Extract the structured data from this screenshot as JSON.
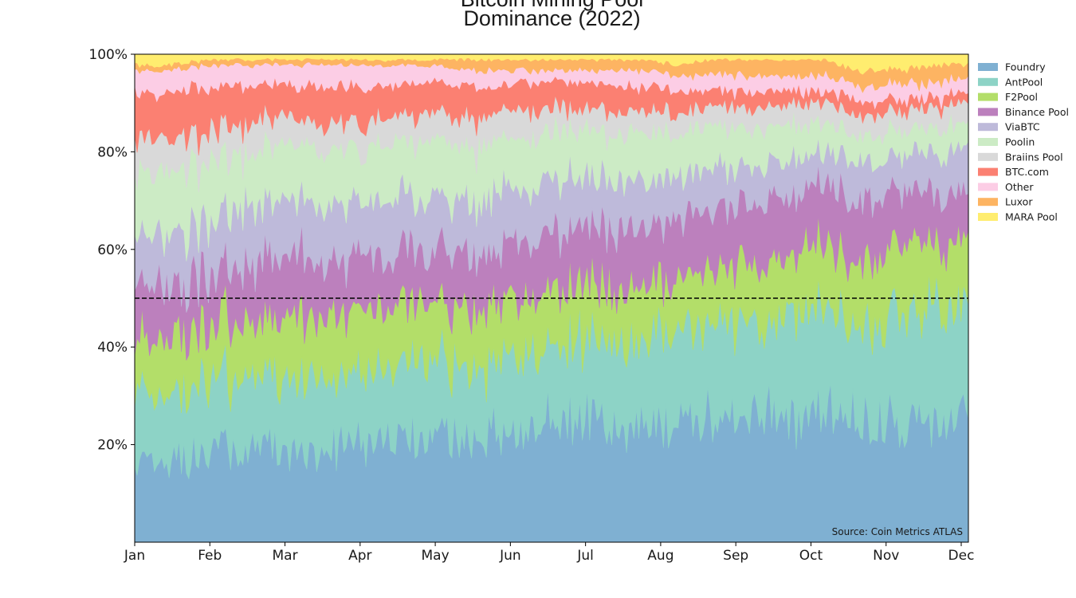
{
  "chart_data": {
    "type": "area",
    "stacked": true,
    "normalized": true,
    "title_line1": "Bitcoin Mining Pool",
    "title_line2": "Dominance (2022)",
    "source_note": "Source: Coin Metrics ATLAS",
    "xlabel": "",
    "ylabel": "",
    "x_ticks": [
      "Jan",
      "Feb",
      "Mar",
      "Apr",
      "May",
      "Jun",
      "Jul",
      "Aug",
      "Sep",
      "Oct",
      "Nov",
      "Dec"
    ],
    "y_ticks": [
      "20%",
      "40%",
      "60%",
      "80%",
      "100%"
    ],
    "ylim": [
      0,
      100
    ],
    "reference_line": {
      "y": 50,
      "style": "dashed",
      "color": "#000000"
    },
    "legend_position": "right",
    "grid": false,
    "series": [
      {
        "name": "Foundry",
        "color": "#7fb0d2",
        "values": [
          14,
          15,
          16,
          17,
          18,
          17,
          18,
          19,
          20,
          20,
          21,
          22,
          23,
          23,
          22,
          23,
          23,
          24,
          24,
          25,
          25,
          24,
          24,
          25
        ]
      },
      {
        "name": "AntPool",
        "color": "#8dd3c6",
        "values": [
          13,
          12,
          14,
          13,
          13,
          13,
          14,
          13,
          14,
          13,
          14,
          14,
          15,
          15,
          16,
          17,
          18,
          18,
          19,
          20,
          20,
          21,
          22,
          22
        ]
      },
      {
        "name": "F2Pool",
        "color": "#b3de69",
        "values": [
          10,
          10,
          10,
          10,
          11,
          11,
          11,
          11,
          11,
          11,
          11,
          11,
          11,
          10,
          10,
          11,
          11,
          11,
          11,
          12,
          13,
          13,
          13,
          13
        ]
      },
      {
        "name": "Binance Pool",
        "color": "#bc80bd",
        "values": [
          10,
          10,
          9,
          10,
          11,
          11,
          10,
          10,
          10,
          10,
          10,
          11,
          11,
          11,
          11,
          11,
          11,
          12,
          12,
          12,
          11,
          11,
          10,
          9
        ]
      },
      {
        "name": "ViaBTC",
        "color": "#bebada",
        "values": [
          10,
          10,
          10,
          10,
          10,
          10,
          10,
          10,
          10,
          10,
          10,
          10,
          9,
          9,
          9,
          8,
          8,
          7,
          7,
          7,
          7,
          7,
          8,
          9
        ]
      },
      {
        "name": "Poolin",
        "color": "#ccebc5",
        "values": [
          12,
          12,
          11,
          11,
          10,
          10,
          10,
          10,
          10,
          10,
          10,
          9,
          9,
          9,
          9,
          8,
          8,
          7,
          7,
          6,
          5,
          5,
          5,
          5
        ]
      },
      {
        "name": "Braiins Pool",
        "color": "#d9d9d9",
        "values": [
          6,
          6,
          6,
          6,
          5,
          5,
          5,
          5,
          5,
          5,
          5,
          5,
          4,
          4,
          4,
          4,
          4,
          4,
          4,
          4,
          4,
          4,
          4,
          4
        ]
      },
      {
        "name": "BTC.com",
        "color": "#fb8072",
        "values": [
          8,
          8,
          8,
          7,
          6,
          7,
          6,
          6,
          6,
          6,
          5,
          5,
          5,
          5,
          5,
          4,
          3,
          3,
          3,
          2,
          3,
          2,
          2,
          2
        ]
      },
      {
        "name": "Other",
        "color": "#fccde5",
        "values": [
          4,
          4,
          4,
          4,
          4,
          4,
          4,
          4,
          3,
          3,
          3,
          2,
          2,
          3,
          3,
          3,
          3,
          3,
          3,
          3,
          3,
          3,
          3,
          3
        ]
      },
      {
        "name": "Luxor",
        "color": "#fdb462",
        "values": [
          1,
          1,
          1,
          1,
          1,
          1,
          1,
          1,
          1,
          2,
          2,
          2,
          2,
          2,
          2,
          2,
          3,
          3,
          3,
          3,
          3,
          3,
          3,
          3
        ]
      },
      {
        "name": "MARA Pool",
        "color": "#ffed6f",
        "values": [
          2,
          2,
          1,
          1,
          1,
          1,
          1,
          1,
          1,
          1,
          1,
          1,
          1,
          1,
          1,
          2,
          1,
          1,
          1,
          1,
          3,
          3,
          2,
          2
        ]
      }
    ]
  }
}
